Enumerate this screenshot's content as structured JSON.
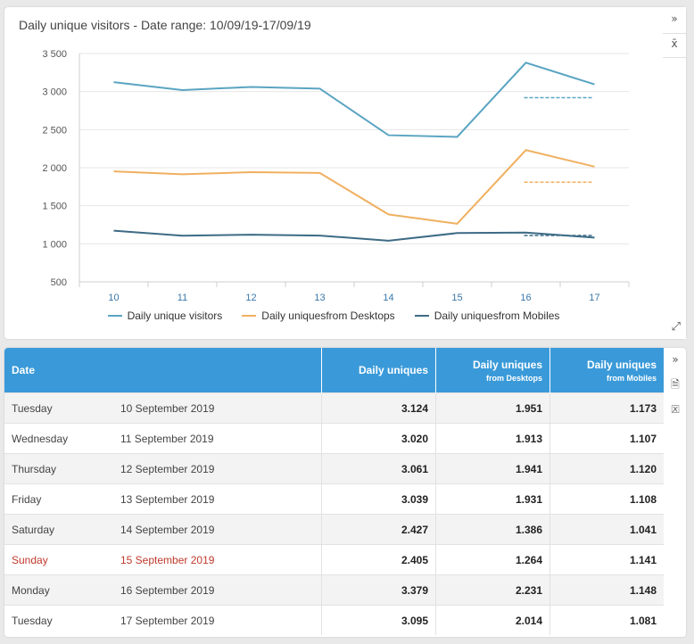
{
  "chart": {
    "title": "Daily unique visitors - Date range: 10/09/19-17/09/19"
  },
  "tools": {
    "collapse_icon": "double-chevron-right-icon",
    "xbar_icon": "x-bar-icon",
    "expand_icon": "expand-arrows-icon",
    "pdf_icon": "pdf-file-icon",
    "excel_icon": "excel-file-icon",
    "collapse_glyph": "»",
    "xbar_glyph": "x̄",
    "expand_glyph": "⤢",
    "pdf_glyph": "🗎",
    "excel_glyph": "🗵"
  },
  "chart_data": {
    "type": "line",
    "title": "Daily unique visitors - Date range: 10/09/19-17/09/19",
    "xlabel": "",
    "ylabel": "",
    "categories": [
      "10",
      "11",
      "12",
      "13",
      "14",
      "15",
      "16",
      "17"
    ],
    "ylim": [
      500,
      3500
    ],
    "yticks": [
      "3 500",
      "3 000",
      "2 500",
      "2 000",
      "1 500",
      "1 000",
      "500"
    ],
    "ytick_values": [
      3500,
      3000,
      2500,
      2000,
      1500,
      1000,
      500
    ],
    "grid": true,
    "legend_position": "bottom",
    "series": [
      {
        "name": "Daily unique visitors",
        "color": "#5aa4c2",
        "values": [
          3124,
          3020,
          3061,
          3039,
          2427,
          2405,
          3379,
          3095
        ],
        "average": 2920
      },
      {
        "name": "Daily uniquesfrom Desktops",
        "color": "#f0b060",
        "values": [
          1951,
          1913,
          1941,
          1931,
          1386,
          1264,
          2231,
          2014
        ],
        "average": 1810
      },
      {
        "name": "Daily uniquesfrom Mobiles",
        "color": "#3d6b85",
        "values": [
          1173,
          1107,
          1120,
          1108,
          1041,
          1141,
          1148,
          1081
        ],
        "average": 1110
      }
    ]
  },
  "table": {
    "headers": {
      "date": "Date",
      "uniques": "Daily uniques",
      "desktops_main": "Daily uniques",
      "desktops_sub": "from Desktops",
      "mobiles_main": "Daily uniques",
      "mobiles_sub": "from Mobiles"
    },
    "rows": [
      {
        "day": "Tuesday",
        "date": "10 September 2019",
        "uniques": "3.124",
        "desktops": "1.951",
        "mobiles": "1.173"
      },
      {
        "day": "Wednesday",
        "date": "11 September 2019",
        "uniques": "3.020",
        "desktops": "1.913",
        "mobiles": "1.107"
      },
      {
        "day": "Thursday",
        "date": "12 September 2019",
        "uniques": "3.061",
        "desktops": "1.941",
        "mobiles": "1.120"
      },
      {
        "day": "Friday",
        "date": "13 September 2019",
        "uniques": "3.039",
        "desktops": "1.931",
        "mobiles": "1.108"
      },
      {
        "day": "Saturday",
        "date": "14 September 2019",
        "uniques": "2.427",
        "desktops": "1.386",
        "mobiles": "1.041"
      },
      {
        "day": "Sunday",
        "date": "15 September 2019",
        "uniques": "2.405",
        "desktops": "1.264",
        "mobiles": "1.141"
      },
      {
        "day": "Monday",
        "date": "16 September 2019",
        "uniques": "3.379",
        "desktops": "2.231",
        "mobiles": "1.148"
      },
      {
        "day": "Tuesday",
        "date": "17 September 2019",
        "uniques": "3.095",
        "desktops": "2.014",
        "mobiles": "1.081"
      }
    ],
    "highlight_color": "#c0392b"
  }
}
